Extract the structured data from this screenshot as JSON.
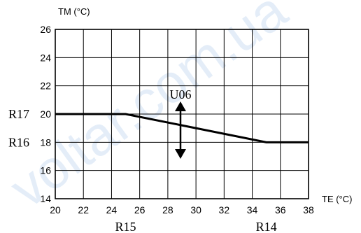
{
  "watermark": "voltar.com.ua",
  "chart_data": {
    "type": "line",
    "xlabel": "TE (°C)",
    "ylabel": "TM (°C)",
    "xlim": [
      20,
      38
    ],
    "ylim": [
      14,
      26
    ],
    "x_ticks": [
      20,
      22,
      24,
      26,
      28,
      30,
      32,
      34,
      36,
      38
    ],
    "y_ticks": [
      14,
      16,
      18,
      20,
      22,
      24,
      26
    ],
    "grid": true,
    "series": [
      {
        "x": [
          20,
          25,
          35,
          38
        ],
        "y": [
          20,
          20,
          18,
          18
        ],
        "color": "#000000"
      }
    ],
    "annotations": {
      "r17": "R17",
      "r16": "R16",
      "r15": "R15",
      "r14": "R14",
      "u06": "U06",
      "r17_value": 20,
      "r16_value": 18,
      "r15_value": 25,
      "r14_value": 35
    }
  }
}
